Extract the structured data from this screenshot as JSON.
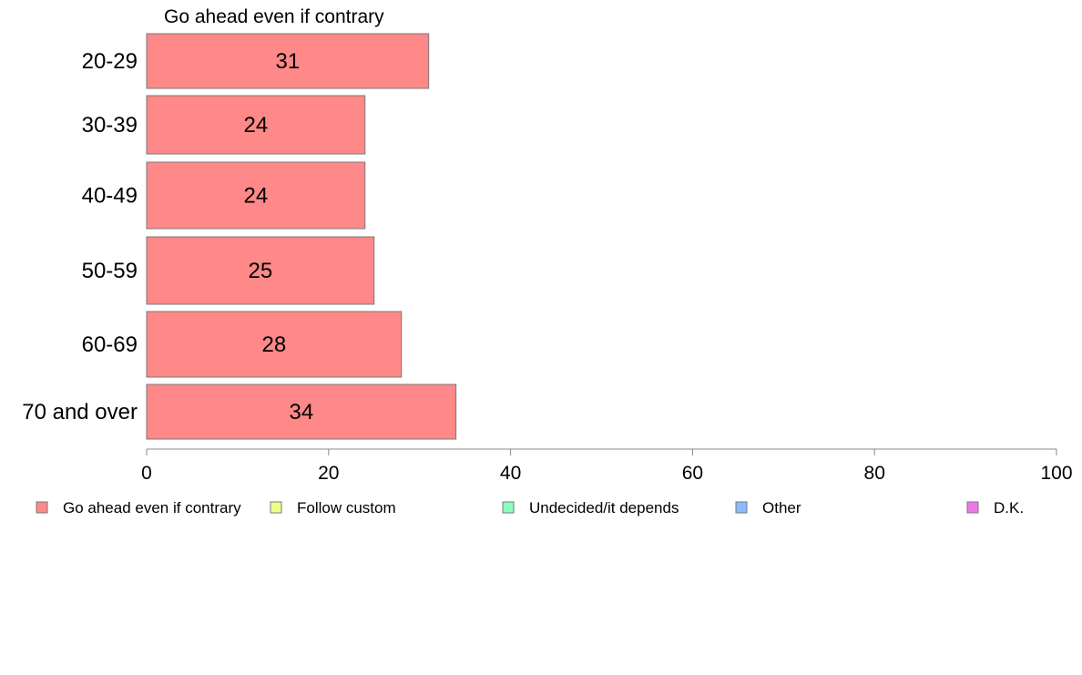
{
  "chart_data": {
    "type": "bar",
    "orientation": "horizontal",
    "title": "Go ahead even if contrary",
    "categories": [
      "20-29",
      "30-39",
      "40-49",
      "50-59",
      "60-69",
      "70 and over"
    ],
    "values": [
      31,
      24,
      24,
      25,
      28,
      34
    ],
    "value_labels": [
      "31",
      "24",
      "24",
      "25",
      "28",
      "34"
    ],
    "xlim": [
      0,
      100
    ],
    "x_ticks": [
      0,
      20,
      40,
      60,
      80,
      100
    ],
    "grid": false,
    "bar_color": "#ff8888",
    "legend_position": "bottom",
    "legend": [
      {
        "label": "Go ahead even if contrary",
        "color": "#ff8888"
      },
      {
        "label": "Follow custom",
        "color": "#f0ff88"
      },
      {
        "label": "Undecided/it depends",
        "color": "#88ffbb"
      },
      {
        "label": "Other",
        "color": "#88bbff"
      },
      {
        "label": "D.K.",
        "color": "#ee77ee"
      }
    ]
  }
}
